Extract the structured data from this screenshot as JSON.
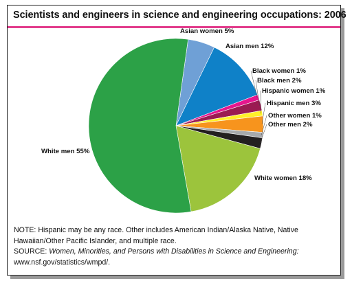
{
  "chart_data": {
    "type": "pie",
    "title": "Scientists and engineers in science and engineering occupations: 2006",
    "slices": [
      {
        "label": "Asian women 5%",
        "value": 5,
        "color": "#6fa0d6"
      },
      {
        "label": "Asian men 12%",
        "value": 12,
        "color": "#0f81c8"
      },
      {
        "label": "Black women 1%",
        "value": 1,
        "color": "#e6168e"
      },
      {
        "label": "Black men 2%",
        "value": 2,
        "color": "#9b1b52"
      },
      {
        "label": "Hispanic women 1%",
        "value": 1,
        "color": "#fff02a"
      },
      {
        "label": "Hispanic men 3%",
        "value": 3,
        "color": "#f7941d"
      },
      {
        "label": "Other women 1%",
        "value": 1,
        "color": "#a7a9ac"
      },
      {
        "label": "Other men 2%",
        "value": 2,
        "color": "#231f20"
      },
      {
        "label": "White women 18%",
        "value": 18,
        "color": "#9cc43c"
      },
      {
        "label": "White men 55%",
        "value": 55,
        "color": "#2ca147"
      }
    ]
  },
  "notes": {
    "note": "NOTE: Hispanic may be any race. Other includes American Indian/Alaska Native, Native Hawaiian/Other Pacific Islander, and multiple race.",
    "source_prefix": "SOURCE: ",
    "source_title": "Women, Minorities, and Persons with Disabilities in Science and Engineering:",
    "source_url": "www.nsf.gov/statistics/wmpd/."
  }
}
